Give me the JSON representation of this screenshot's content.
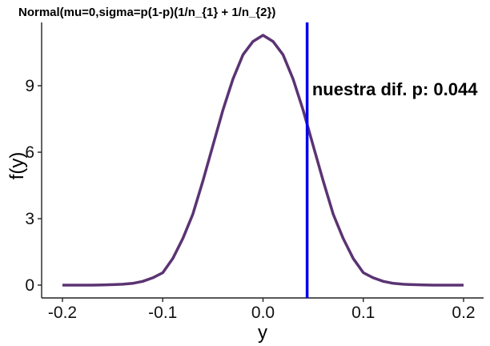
{
  "chart_data": {
    "type": "line",
    "title": "Normal(mu=0,sigma=p(1-p)(1/n_{1} + 1/n_{2})",
    "xlabel": "y",
    "ylabel": "f(y)",
    "xlim": [
      -0.2,
      0.2
    ],
    "ylim": [
      0,
      11.28
    ],
    "x_ticks": [
      -0.2,
      -0.1,
      0.0,
      0.1,
      0.2
    ],
    "x_tick_labels": [
      "-0.2",
      "-0.1",
      "0.0",
      "0.1",
      "0.2"
    ],
    "y_ticks": [
      0,
      3,
      6,
      9
    ],
    "y_tick_labels": [
      "0",
      "3",
      "6",
      "9"
    ],
    "grid": false,
    "series": [
      {
        "color": "#5b3373",
        "x": [
          -0.2,
          -0.19,
          -0.18,
          -0.17,
          -0.16,
          -0.15,
          -0.14,
          -0.13,
          -0.12,
          -0.11,
          -0.1,
          -0.09,
          -0.08,
          -0.07,
          -0.06,
          -0.05,
          -0.04,
          -0.03,
          -0.02,
          -0.01,
          0.0,
          0.01,
          0.02,
          0.03,
          0.04,
          0.05,
          0.06,
          0.07,
          0.08,
          0.09,
          0.1,
          0.11,
          0.12,
          0.13,
          0.14,
          0.15,
          0.16,
          0.17,
          0.18,
          0.19,
          0.2
        ],
        "y": [
          0,
          0,
          0,
          0,
          0.01,
          0.02,
          0.04,
          0.08,
          0.17,
          0.33,
          0.56,
          1.2,
          2.1,
          3.2,
          4.7,
          6.3,
          7.9,
          9.3,
          10.4,
          11.0,
          11.28,
          11.0,
          10.4,
          9.3,
          7.9,
          6.3,
          4.7,
          3.2,
          2.1,
          1.2,
          0.56,
          0.33,
          0.17,
          0.08,
          0.04,
          0.02,
          0.01,
          0,
          0,
          0,
          0
        ]
      }
    ],
    "vline": {
      "x": 0.044,
      "color": "#0000ee"
    },
    "annotation": {
      "text": "nuestra dif. p: 0.044",
      "x": 0.049,
      "y": 8.85
    }
  }
}
